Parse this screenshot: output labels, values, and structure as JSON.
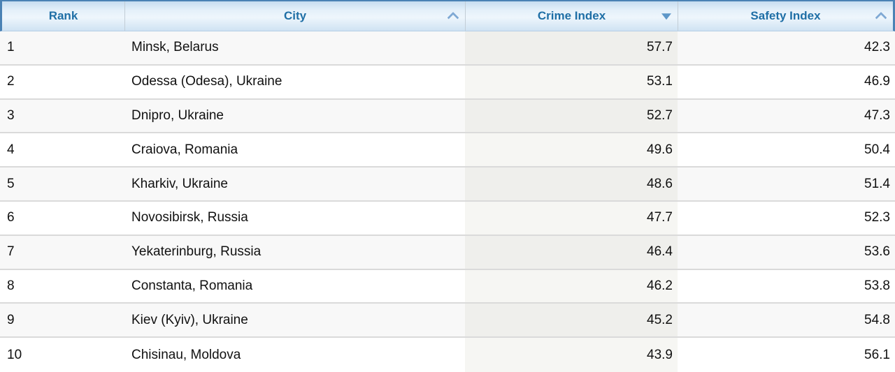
{
  "table": {
    "columns": [
      {
        "key": "rank",
        "label": "Rank",
        "sortable": false,
        "sort_state": "none"
      },
      {
        "key": "city",
        "label": "City",
        "sortable": true,
        "sort_state": "unsorted"
      },
      {
        "key": "crime",
        "label": "Crime Index",
        "sortable": true,
        "sort_state": "sorted-descending"
      },
      {
        "key": "safety",
        "label": "Safety Index",
        "sortable": true,
        "sort_state": "unsorted"
      }
    ],
    "rows": [
      {
        "rank": "1",
        "city": "Minsk, Belarus",
        "crime": "57.7",
        "safety": "42.3"
      },
      {
        "rank": "2",
        "city": "Odessa (Odesa), Ukraine",
        "crime": "53.1",
        "safety": "46.9"
      },
      {
        "rank": "3",
        "city": "Dnipro, Ukraine",
        "crime": "52.7",
        "safety": "47.3"
      },
      {
        "rank": "4",
        "city": "Craiova, Romania",
        "crime": "49.6",
        "safety": "50.4"
      },
      {
        "rank": "5",
        "city": "Kharkiv, Ukraine",
        "crime": "48.6",
        "safety": "51.4"
      },
      {
        "rank": "6",
        "city": "Novosibirsk, Russia",
        "crime": "47.7",
        "safety": "52.3"
      },
      {
        "rank": "7",
        "city": "Yekaterinburg, Russia",
        "crime": "46.4",
        "safety": "53.6"
      },
      {
        "rank": "8",
        "city": "Constanta, Romania",
        "crime": "46.2",
        "safety": "53.8"
      },
      {
        "rank": "9",
        "city": "Kiev (Kyiv), Ukraine",
        "crime": "45.2",
        "safety": "54.8"
      },
      {
        "rank": "10",
        "city": "Chisinau, Moldova",
        "crime": "43.9",
        "safety": "56.1"
      }
    ]
  },
  "chart_data": {
    "type": "table",
    "columns": [
      "Rank",
      "City",
      "Crime Index",
      "Safety Index"
    ],
    "rows": [
      [
        1,
        "Minsk, Belarus",
        57.7,
        42.3
      ],
      [
        2,
        "Odessa (Odesa), Ukraine",
        53.1,
        46.9
      ],
      [
        3,
        "Dnipro, Ukraine",
        52.7,
        47.3
      ],
      [
        4,
        "Craiova, Romania",
        49.6,
        50.4
      ],
      [
        5,
        "Kharkiv, Ukraine",
        48.6,
        51.4
      ],
      [
        6,
        "Novosibirsk, Russia",
        47.7,
        52.3
      ],
      [
        7,
        "Yekaterinburg, Russia",
        46.4,
        53.6
      ],
      [
        8,
        "Constanta, Romania",
        46.2,
        53.8
      ],
      [
        9,
        "Kiev (Kyiv), Ukraine",
        45.2,
        54.8
      ],
      [
        10,
        "Chisinau, Moldova",
        43.9,
        56.1
      ]
    ],
    "sorted_by": "Crime Index",
    "sort_order": "descending"
  },
  "colors": {
    "header_text": "#1f6fa6",
    "header_border": "#4a82b4",
    "header_gradient_top": "#c7ddf0",
    "header_gradient_mid": "#eef6fc",
    "header_gradient_bottom": "#cfe2f3",
    "sort_active_arrow": "#5e97c8",
    "sort_inactive_caret": "#7fa9d4",
    "row_odd_bg": "#f8f8f8",
    "row_even_bg": "#ffffff",
    "sorted_col_odd_bg": "#efefec",
    "sorted_col_even_bg": "#f6f6f3",
    "row_divider": "#dadada"
  }
}
